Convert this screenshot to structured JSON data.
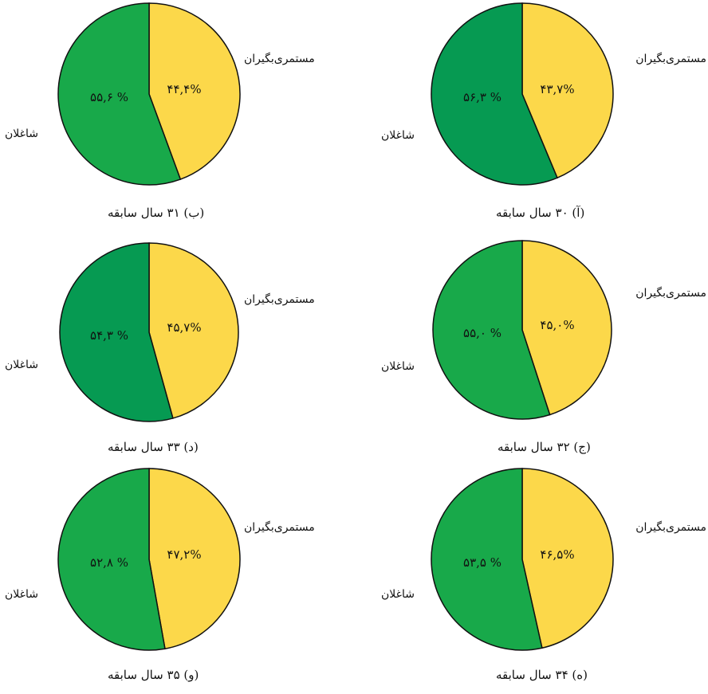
{
  "chart_data": [
    {
      "type": "pie",
      "caption": "(آ) ۳۰ سال سابقه",
      "slices": [
        {
          "label": "مستمری‌بگیران",
          "value": 43.7,
          "text": "۴۳,۷%",
          "color": "#fcd84a"
        },
        {
          "label": "شاغلان",
          "value": 56.3,
          "text": "۵۶,۳ %",
          "color": "#069a52"
        }
      ]
    },
    {
      "type": "pie",
      "caption": "(ب) ۳۱ سال سابقه",
      "slices": [
        {
          "label": "مستمری‌بگیران",
          "value": 44.4,
          "text": "۴۴,۴%",
          "color": "#fcd84a"
        },
        {
          "label": "شاغلان",
          "value": 55.6,
          "text": "۵۵,۶ %",
          "color": "#18a94a"
        }
      ]
    },
    {
      "type": "pie",
      "caption": "(ج) ۳۲ سال سابقه",
      "slices": [
        {
          "label": "مستمری‌بگیران",
          "value": 45.0,
          "text": "۴۵,۰%",
          "color": "#fcd84a"
        },
        {
          "label": "شاغلان",
          "value": 55.0,
          "text": "۵۵,۰ %",
          "color": "#18a94a"
        }
      ]
    },
    {
      "type": "pie",
      "caption": "(د) ۳۳ سال سابقه",
      "slices": [
        {
          "label": "مستمری‌بگیران",
          "value": 45.7,
          "text": "۴۵,۷%",
          "color": "#fcd84a"
        },
        {
          "label": "شاغلان",
          "value": 54.3,
          "text": "۵۴,۳ %",
          "color": "#069a52"
        }
      ]
    },
    {
      "type": "pie",
      "caption": "(ه) ۳۴ سال سابقه",
      "slices": [
        {
          "label": "مستمری‌بگیران",
          "value": 46.5,
          "text": "۴۶,۵%",
          "color": "#fcd84a"
        },
        {
          "label": "شاغلان",
          "value": 53.5,
          "text": "۵۳,۵ %",
          "color": "#18a94a"
        }
      ]
    },
    {
      "type": "pie",
      "caption": "(و) ۳۵ سال سابقه",
      "slices": [
        {
          "label": "مستمری‌بگیران",
          "value": 47.2,
          "text": "۴۷,۲%",
          "color": "#fcd84a"
        },
        {
          "label": "شاغلان",
          "value": 52.8,
          "text": "۵۲,۸ %",
          "color": "#18a94a"
        }
      ]
    }
  ]
}
